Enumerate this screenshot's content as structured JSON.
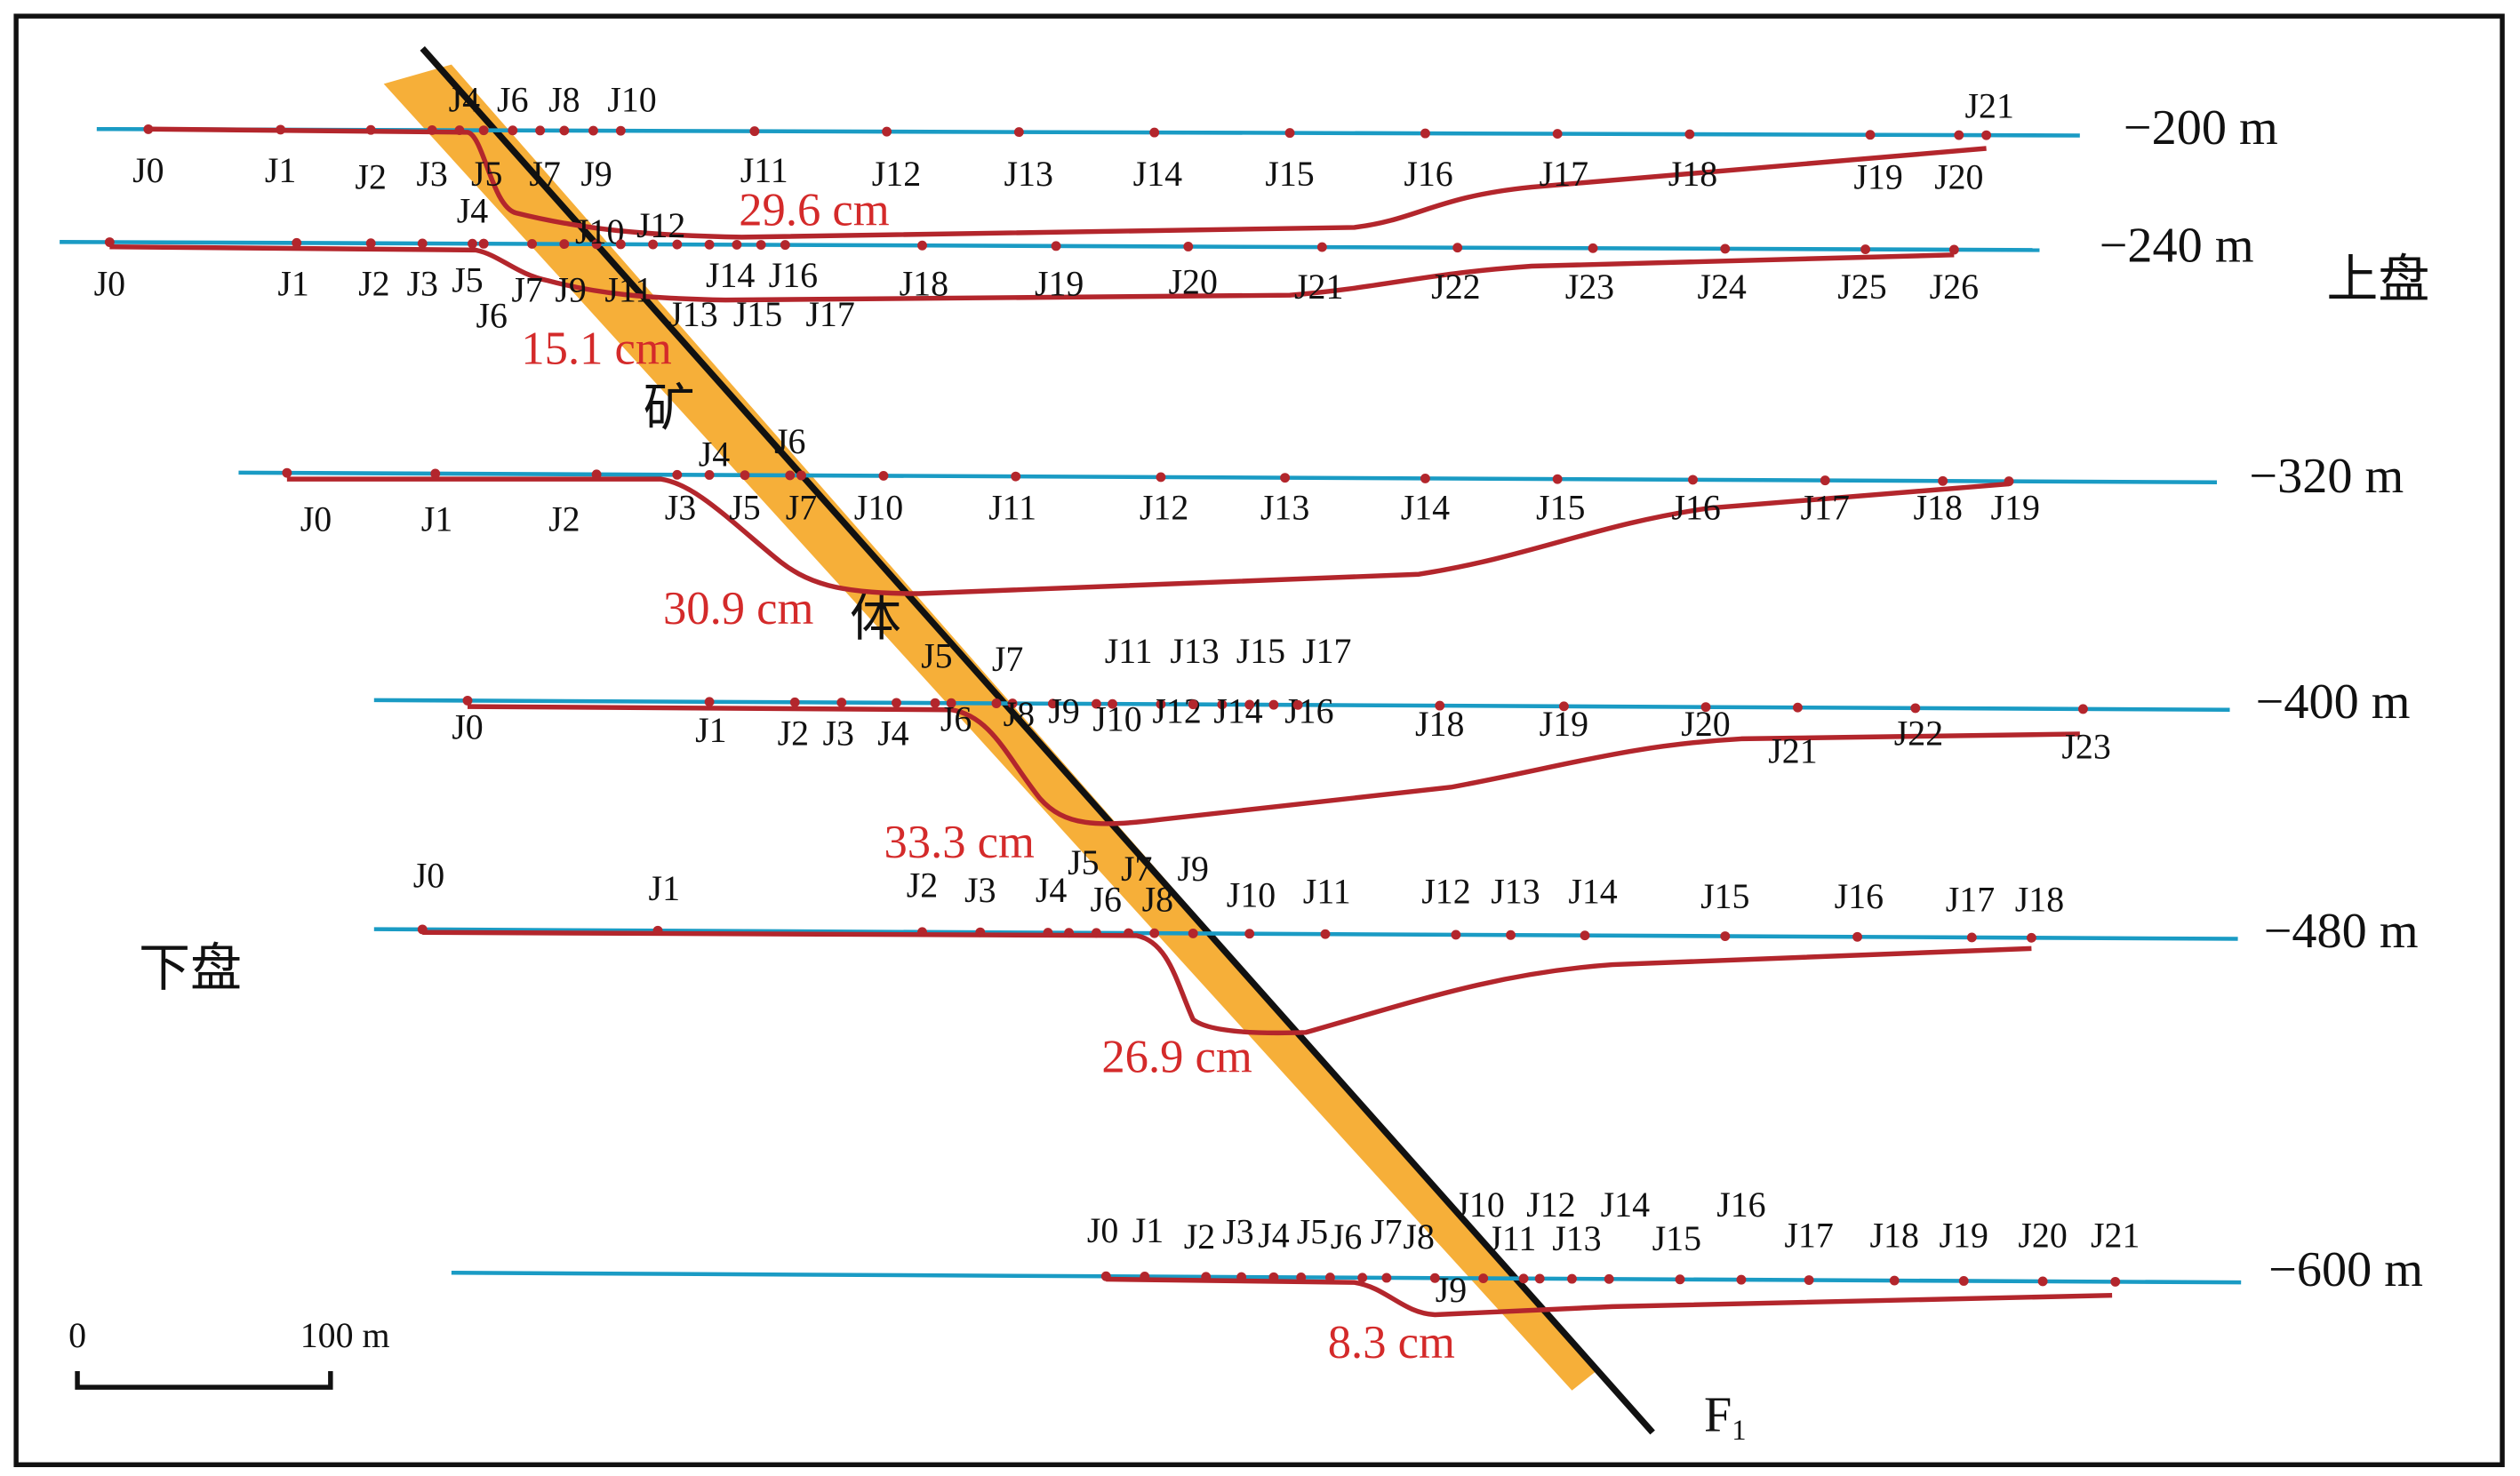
{
  "levels": [
    {
      "label": "−200 m",
      "subsidence": "29.6 cm",
      "points": [
        "J0",
        "J1",
        "J2",
        "J3",
        "J4",
        "J5",
        "J6",
        "J7",
        "J8",
        "J9",
        "J10",
        "J11",
        "J12",
        "J13",
        "J14",
        "J15",
        "J16",
        "J17",
        "J18",
        "J19",
        "J20",
        "J21"
      ]
    },
    {
      "label": "−240 m",
      "subsidence": "15.1 cm",
      "points": [
        "J0",
        "J1",
        "J2",
        "J3",
        "J4",
        "J5",
        "J6",
        "J7",
        "J9",
        "J10",
        "J11",
        "J12",
        "J13",
        "J14",
        "J15",
        "J16",
        "J17",
        "J18",
        "J19",
        "J20",
        "J21",
        "J22",
        "J23",
        "J24",
        "J25",
        "J26"
      ]
    },
    {
      "label": "−320 m",
      "subsidence": "30.9 cm",
      "points": [
        "J0",
        "J1",
        "J2",
        "J3",
        "J4",
        "J5",
        "J6",
        "J7",
        "J10",
        "J11",
        "J12",
        "J13",
        "J14",
        "J15",
        "J16",
        "J17",
        "J18",
        "J19"
      ]
    },
    {
      "label": "−400 m",
      "subsidence": "33.3 cm",
      "points": [
        "J0",
        "J1",
        "J2",
        "J3",
        "J4",
        "J5",
        "J6",
        "J7",
        "J8",
        "J9",
        "J10",
        "J11",
        "J12",
        "J13",
        "J14",
        "J15",
        "J16",
        "J17",
        "J18",
        "J19",
        "J20",
        "J21",
        "J22",
        "J23"
      ]
    },
    {
      "label": "−480 m",
      "subsidence": "26.9 cm",
      "points": [
        "J0",
        "J1",
        "J2",
        "J3",
        "J4",
        "J5",
        "J6",
        "J7",
        "J8",
        "J9",
        "J10",
        "J11",
        "J12",
        "J13",
        "J14",
        "J15",
        "J16",
        "J17",
        "J18"
      ]
    },
    {
      "label": "−600 m",
      "subsidence": "8.3 cm",
      "points": [
        "J0",
        "J1",
        "J2",
        "J3",
        "J4",
        "J5",
        "J6",
        "J7",
        "J8",
        "J9",
        "J10",
        "J11",
        "J12",
        "J13",
        "J14",
        "J15",
        "J16",
        "J17",
        "J18",
        "J19",
        "J20",
        "J21"
      ]
    }
  ],
  "hanging_wall": "上盘",
  "footwall": "下盘",
  "ore_body": [
    "矿",
    "体"
  ],
  "fault": {
    "label": "F",
    "sub": "1"
  },
  "scale_bar": {
    "start": "0",
    "end": "100 m"
  }
}
